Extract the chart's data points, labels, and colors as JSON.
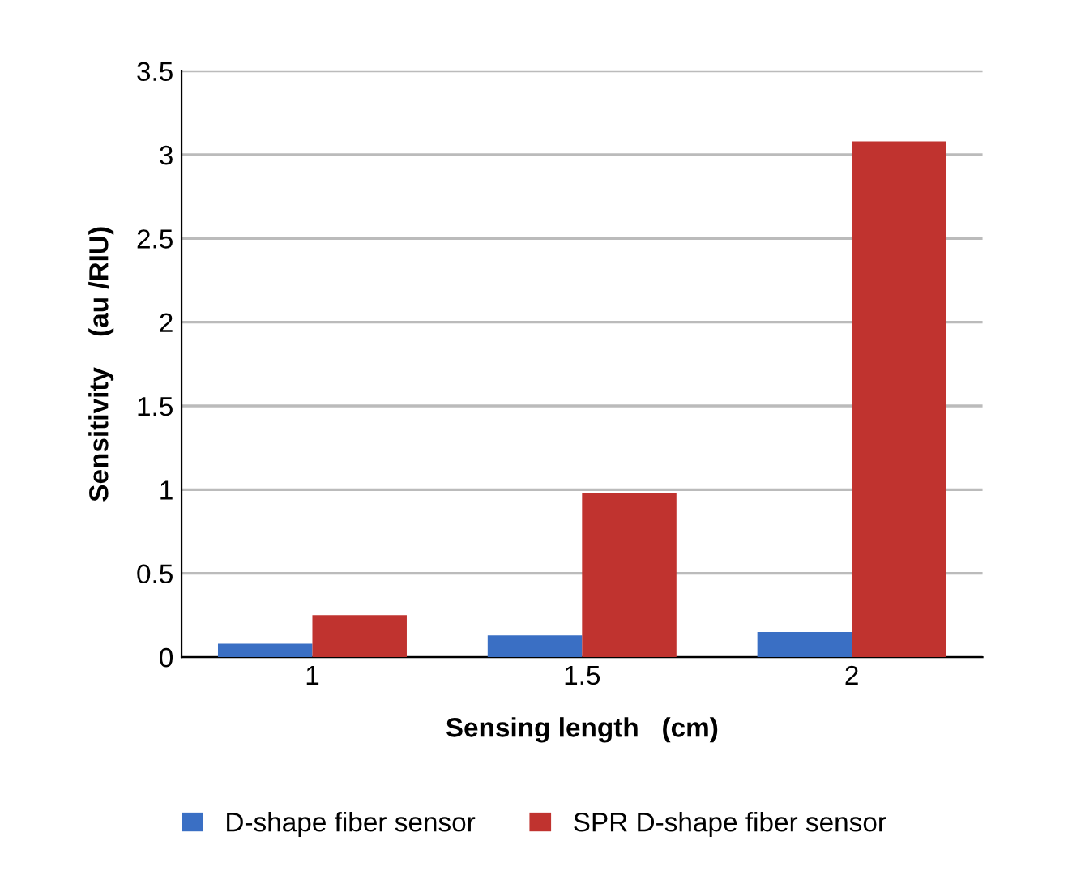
{
  "chart_data": {
    "type": "bar",
    "xlabel": "Sensing length   (cm)",
    "ylabel": "Sensitivity    (au /RIU)",
    "categories": [
      "1",
      "1.5",
      "2"
    ],
    "series": [
      {
        "name": "D-shape fiber sensor",
        "color": "#3a6fc4",
        "values": [
          0.08,
          0.13,
          0.15
        ]
      },
      {
        "name": "SPR D-shape fiber sensor",
        "color": "#c0332f",
        "values": [
          0.25,
          0.98,
          3.08
        ]
      }
    ],
    "ylim": [
      0,
      3.5
    ],
    "yticks": [
      0,
      0.5,
      1,
      1.5,
      2,
      2.5,
      3,
      3.5
    ],
    "grid": "y",
    "legend": "bottom"
  }
}
